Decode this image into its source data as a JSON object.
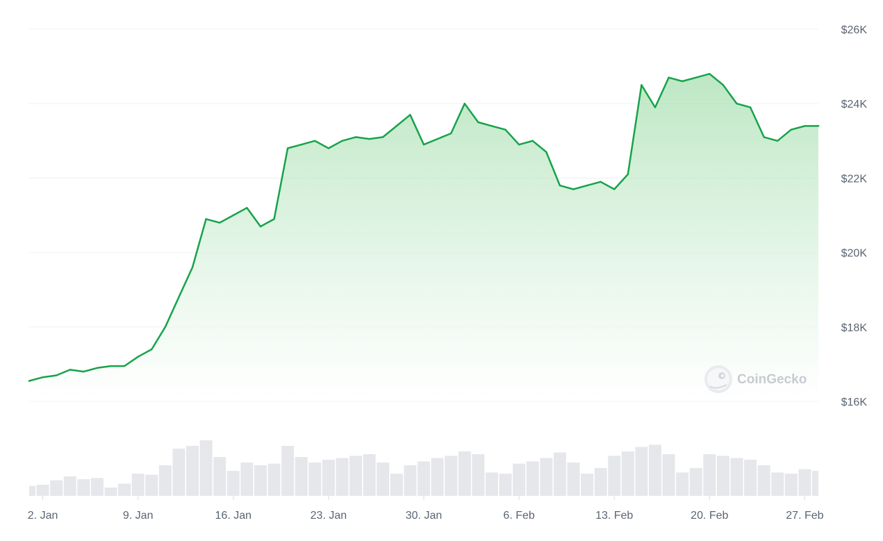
{
  "watermark": {
    "text": "CoinGecko",
    "icon": "coingecko-logo"
  },
  "colors": {
    "line": "#16a34a",
    "area_top": "#a7dfb0",
    "area_bottom": "#ffffff",
    "volume": "#e5e7eb",
    "grid": "#eef0f3",
    "label": "#5b6472"
  },
  "chart_data": {
    "type": "area",
    "title": "",
    "xlabel": "",
    "ylabel": "",
    "y_scale": "linear",
    "ylim": [
      16000,
      26000
    ],
    "y_ticks": [
      16000,
      18000,
      20000,
      22000,
      24000,
      26000
    ],
    "y_tick_labels": [
      "$16K",
      "$18K",
      "$20K",
      "$22K",
      "$24K",
      "$26K"
    ],
    "x_range": [
      "2023-01-01",
      "2023-02-28"
    ],
    "x_ticks": [
      "2023-01-02",
      "2023-01-09",
      "2023-01-16",
      "2023-01-23",
      "2023-01-30",
      "2023-02-06",
      "2023-02-13",
      "2023-02-20",
      "2023-02-27"
    ],
    "x_tick_labels": [
      "2. Jan",
      "9. Jan",
      "16. Jan",
      "23. Jan",
      "30. Jan",
      "6. Feb",
      "13. Feb",
      "20. Feb",
      "27. Feb"
    ],
    "grid": true,
    "legend": "none",
    "price_series": {
      "x": [
        "2023-01-01",
        "2023-01-02",
        "2023-01-03",
        "2023-01-04",
        "2023-01-05",
        "2023-01-06",
        "2023-01-07",
        "2023-01-08",
        "2023-01-09",
        "2023-01-10",
        "2023-01-11",
        "2023-01-12",
        "2023-01-13",
        "2023-01-14",
        "2023-01-15",
        "2023-01-16",
        "2023-01-17",
        "2023-01-18",
        "2023-01-19",
        "2023-01-20",
        "2023-01-21",
        "2023-01-22",
        "2023-01-23",
        "2023-01-24",
        "2023-01-25",
        "2023-01-26",
        "2023-01-27",
        "2023-01-28",
        "2023-01-29",
        "2023-01-30",
        "2023-01-31",
        "2023-02-01",
        "2023-02-02",
        "2023-02-03",
        "2023-02-04",
        "2023-02-05",
        "2023-02-06",
        "2023-02-07",
        "2023-02-08",
        "2023-02-09",
        "2023-02-10",
        "2023-02-11",
        "2023-02-12",
        "2023-02-13",
        "2023-02-14",
        "2023-02-15",
        "2023-02-16",
        "2023-02-17",
        "2023-02-18",
        "2023-02-19",
        "2023-02-20",
        "2023-02-21",
        "2023-02-22",
        "2023-02-23",
        "2023-02-24",
        "2023-02-25",
        "2023-02-26",
        "2023-02-27",
        "2023-02-28"
      ],
      "y": [
        16550,
        16650,
        16700,
        16850,
        16800,
        16900,
        16950,
        16950,
        17200,
        17400,
        18000,
        18800,
        19600,
        20900,
        20800,
        21000,
        21200,
        20700,
        20900,
        22800,
        22900,
        23000,
        22800,
        23000,
        23100,
        23050,
        23100,
        23400,
        23700,
        22900,
        23050,
        23200,
        24000,
        23500,
        23400,
        23300,
        22900,
        23000,
        22700,
        21800,
        21700,
        21800,
        21900,
        21700,
        22100,
        24500,
        23900,
        24700,
        24600,
        24700,
        24800,
        24500,
        24000,
        23900,
        23100,
        23000,
        23300,
        23400,
        23400
      ]
    },
    "volume_series": {
      "x": [
        "2023-01-01",
        "2023-01-02",
        "2023-01-03",
        "2023-01-04",
        "2023-01-05",
        "2023-01-06",
        "2023-01-07",
        "2023-01-08",
        "2023-01-09",
        "2023-01-10",
        "2023-01-11",
        "2023-01-12",
        "2023-01-13",
        "2023-01-14",
        "2023-01-15",
        "2023-01-16",
        "2023-01-17",
        "2023-01-18",
        "2023-01-19",
        "2023-01-20",
        "2023-01-21",
        "2023-01-22",
        "2023-01-23",
        "2023-01-24",
        "2023-01-25",
        "2023-01-26",
        "2023-01-27",
        "2023-01-28",
        "2023-01-29",
        "2023-01-30",
        "2023-01-31",
        "2023-02-01",
        "2023-02-02",
        "2023-02-03",
        "2023-02-04",
        "2023-02-05",
        "2023-02-06",
        "2023-02-07",
        "2023-02-08",
        "2023-02-09",
        "2023-02-10",
        "2023-02-11",
        "2023-02-12",
        "2023-02-13",
        "2023-02-14",
        "2023-02-15",
        "2023-02-16",
        "2023-02-17",
        "2023-02-18",
        "2023-02-19",
        "2023-02-20",
        "2023-02-21",
        "2023-02-22",
        "2023-02-23",
        "2023-02-24",
        "2023-02-25",
        "2023-02-26",
        "2023-02-27",
        "2023-02-28"
      ],
      "relative": [
        0.18,
        0.2,
        0.28,
        0.35,
        0.3,
        0.32,
        0.15,
        0.22,
        0.4,
        0.38,
        0.55,
        0.85,
        0.9,
        1.0,
        0.7,
        0.45,
        0.6,
        0.55,
        0.58,
        0.9,
        0.7,
        0.6,
        0.65,
        0.68,
        0.72,
        0.75,
        0.6,
        0.4,
        0.55,
        0.62,
        0.68,
        0.72,
        0.8,
        0.75,
        0.42,
        0.4,
        0.58,
        0.62,
        0.68,
        0.78,
        0.6,
        0.4,
        0.5,
        0.72,
        0.8,
        0.88,
        0.92,
        0.75,
        0.42,
        0.5,
        0.75,
        0.72,
        0.68,
        0.65,
        0.55,
        0.42,
        0.4,
        0.48,
        0.45
      ]
    }
  }
}
